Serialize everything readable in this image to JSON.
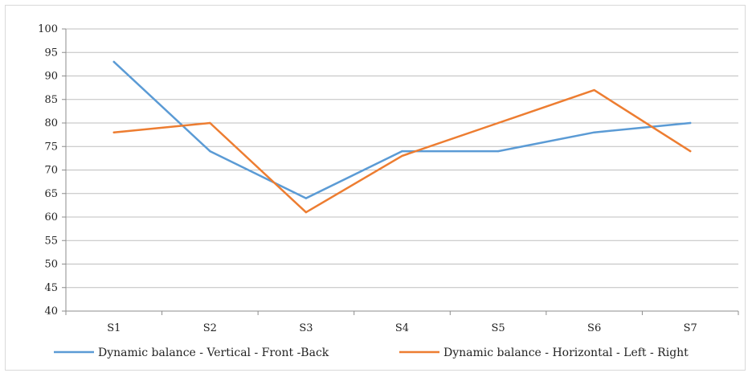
{
  "chart_data": {
    "type": "line",
    "title": "",
    "xlabel": "",
    "ylabel": "",
    "categories": [
      "S1",
      "S2",
      "S3",
      "S4",
      "S5",
      "S6",
      "S7"
    ],
    "ylim": [
      40,
      100
    ],
    "ytick_step": 5,
    "y_ticks": [
      "100",
      "95",
      "90",
      "85",
      "80",
      "75",
      "70",
      "65",
      "60",
      "55",
      "50",
      "45",
      "40"
    ],
    "grid": true,
    "legend_position": "bottom",
    "series": [
      {
        "name": "Dynamic balance - Vertical - Front -Back",
        "color": "#5b9bd5",
        "values": [
          93,
          74,
          64,
          74,
          74,
          78,
          80
        ]
      },
      {
        "name": "Dynamic balance - Horizontal - Left - Right",
        "color": "#ed7d31",
        "values": [
          78,
          80,
          61,
          73,
          80,
          87,
          74
        ]
      }
    ]
  }
}
